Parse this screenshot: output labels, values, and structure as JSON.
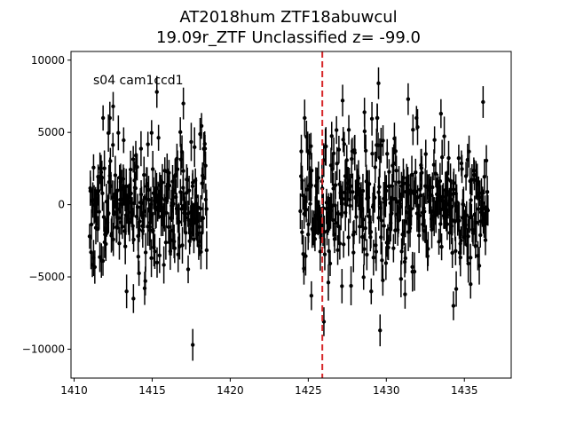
{
  "chart_data": {
    "type": "scatter",
    "title_line1": "AT2018hum  ZTF18abuwcul",
    "title_line2": "19.09r_ZTF Unclassified z= -99.0",
    "annotation": "s04 cam1ccd1",
    "xlabel": "",
    "ylabel": "",
    "xlim": [
      1409.8,
      1438.0
    ],
    "ylim": [
      -12000,
      10600
    ],
    "xticks": [
      1410,
      1415,
      1420,
      1425,
      1430,
      1435
    ],
    "yticks": [
      -10000,
      -5000,
      0,
      5000,
      10000
    ],
    "vline": {
      "x": 1425.9,
      "color": "#d62728",
      "style": "dashed"
    },
    "marker_color": "#000000",
    "segments": [
      {
        "x_start": 1411.0,
        "x_end": 1418.5,
        "n_points": 260,
        "seed": 11
      },
      {
        "x_start": 1424.5,
        "x_end": 1436.5,
        "n_points": 400,
        "seed": 29
      }
    ],
    "typical_scatter": 2300,
    "typical_error": 1100,
    "highlighted_points": [
      {
        "x": 1412.5,
        "y": 6800,
        "err": 1000
      },
      {
        "x": 1415.3,
        "y": 7800,
        "err": 1100
      },
      {
        "x": 1417.0,
        "y": 7000,
        "err": 1100
      },
      {
        "x": 1417.6,
        "y": -9700,
        "err": 1100
      },
      {
        "x": 1413.8,
        "y": -6500,
        "err": 1000
      },
      {
        "x": 1425.2,
        "y": -6300,
        "err": 1000
      },
      {
        "x": 1426.0,
        "y": -8100,
        "err": 1000
      },
      {
        "x": 1427.2,
        "y": 7200,
        "err": 1100
      },
      {
        "x": 1428.6,
        "y": 6400,
        "err": 1000
      },
      {
        "x": 1429.5,
        "y": 8400,
        "err": 1100
      },
      {
        "x": 1429.6,
        "y": -8700,
        "err": 1100
      },
      {
        "x": 1431.4,
        "y": 7300,
        "err": 1100
      },
      {
        "x": 1433.5,
        "y": 6300,
        "err": 1000
      },
      {
        "x": 1434.3,
        "y": -7000,
        "err": 1000
      },
      {
        "x": 1436.2,
        "y": 7100,
        "err": 1100
      },
      {
        "x": 1435.4,
        "y": -5500,
        "err": 1000
      },
      {
        "x": 1431.2,
        "y": -6200,
        "err": 1000
      }
    ]
  }
}
